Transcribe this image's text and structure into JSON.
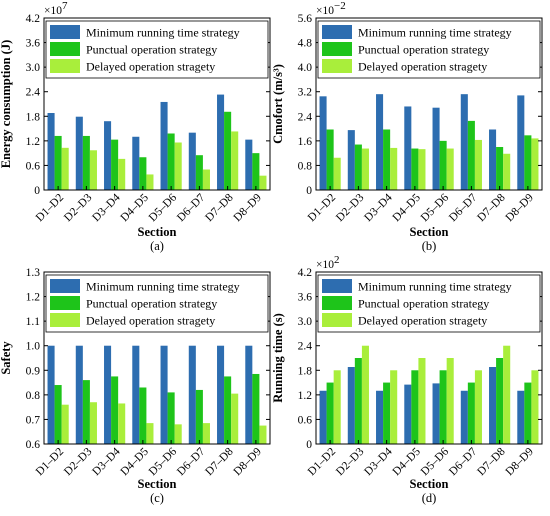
{
  "colors": {
    "min_time": "#2d6db0",
    "punctual": "#1ec41a",
    "delayed": "#a9ee3b"
  },
  "chart_data": [
    {
      "type": "bar",
      "caption": "(a)",
      "categories": [
        "D1–D2",
        "D2–D3",
        "D3–D4",
        "D4–D5",
        "D5–D6",
        "D6–D7",
        "D7–D8",
        "D8–D9"
      ],
      "series": [
        {
          "name": "Minimum running time strategy",
          "values": [
            1.88,
            1.79,
            1.68,
            1.3,
            2.15,
            1.4,
            2.33,
            1.23
          ]
        },
        {
          "name": "Punctual operation strategy",
          "values": [
            1.32,
            1.32,
            1.23,
            0.8,
            1.38,
            0.85,
            1.91,
            0.9
          ]
        },
        {
          "name": "Delayed operation stragety",
          "values": [
            1.03,
            0.97,
            0.76,
            0.38,
            1.16,
            0.5,
            1.43,
            0.35
          ]
        }
      ],
      "xlabel": "Section",
      "ylabel": "Energy consumption (J)",
      "scale_label": "×10",
      "scale_exp": "7",
      "ylim": [
        0,
        4.2
      ],
      "yticks": [
        "0",
        "0.6",
        "1.2",
        "1.8",
        "2.4",
        "3.0",
        "3.6",
        "4.2"
      ],
      "legend": "top"
    },
    {
      "type": "bar",
      "caption": "(b)",
      "categories": [
        "D1–D2",
        "D2–D3",
        "D3–D4",
        "D4–D5",
        "D5–D6",
        "D6–D7",
        "D7–D8",
        "D8–D9"
      ],
      "series": [
        {
          "name": "Minimum running time strategy",
          "values": [
            3.05,
            1.95,
            3.12,
            2.72,
            2.68,
            3.12,
            1.97,
            3.08
          ]
        },
        {
          "name": "Punctual operation strategy",
          "values": [
            1.97,
            1.48,
            1.97,
            1.35,
            1.6,
            2.25,
            1.4,
            1.78
          ]
        },
        {
          "name": "Delayed operation stragety",
          "values": [
            1.05,
            1.35,
            1.37,
            1.33,
            1.35,
            1.63,
            1.18,
            1.68
          ]
        }
      ],
      "xlabel": "Section",
      "ylabel": "Cmofort (m/s³)",
      "scale_label": "×10",
      "scale_exp": "−2",
      "ylim": [
        0,
        5.6
      ],
      "yticks": [
        "0",
        "0.8",
        "1.6",
        "2.4",
        "3.2",
        "4.0",
        "4.8",
        "5.6"
      ],
      "legend": "top"
    },
    {
      "type": "bar",
      "caption": "(c)",
      "categories": [
        "D1–D2",
        "D2–D3",
        "D3–D4",
        "D4–D5",
        "D5–D6",
        "D6–D7",
        "D7–D8",
        "D8–D9"
      ],
      "series": [
        {
          "name": "Minimum running time strategy",
          "values": [
            1.0,
            1.0,
            1.0,
            1.0,
            1.0,
            1.0,
            1.0,
            1.0
          ]
        },
        {
          "name": "Punctual operation strategy",
          "values": [
            0.84,
            0.86,
            0.875,
            0.83,
            0.81,
            0.82,
            0.875,
            0.885
          ]
        },
        {
          "name": "Delayed operation stragety",
          "values": [
            0.76,
            0.77,
            0.765,
            0.685,
            0.68,
            0.685,
            0.805,
            0.675
          ]
        }
      ],
      "xlabel": "Section",
      "ylabel": "Safety",
      "scale_label": "",
      "scale_exp": "",
      "ylim": [
        0.6,
        1.3
      ],
      "yticks": [
        "0.6",
        "0.7",
        "0.8",
        "0.9",
        "1.0",
        "1.1",
        "1.2",
        "1.3"
      ],
      "legend": "top"
    },
    {
      "type": "bar",
      "caption": "(d)",
      "categories": [
        "D1–D2",
        "D2–D3",
        "D3–D4",
        "D4–D5",
        "D5–D6",
        "D6–D7",
        "D7–D8",
        "D8–D9"
      ],
      "series": [
        {
          "name": "Minimum running time strategy",
          "values": [
            1.3,
            1.88,
            1.3,
            1.45,
            1.48,
            1.3,
            1.88,
            1.3
          ]
        },
        {
          "name": "Punctual operation strategy",
          "values": [
            1.5,
            2.1,
            1.5,
            1.8,
            1.8,
            1.5,
            2.1,
            1.5
          ]
        },
        {
          "name": "Delayed operation stragety",
          "values": [
            1.8,
            2.4,
            1.8,
            2.1,
            2.1,
            1.8,
            2.4,
            1.8
          ]
        }
      ],
      "xlabel": "Section",
      "ylabel": "Running time (s)",
      "scale_label": "×10",
      "scale_exp": "2",
      "ylim": [
        0,
        4.2
      ],
      "yticks": [
        "0",
        "0.6",
        "1.2",
        "1.8",
        "2.4",
        "3.0",
        "3.6",
        "4.2"
      ],
      "legend": "top"
    }
  ]
}
